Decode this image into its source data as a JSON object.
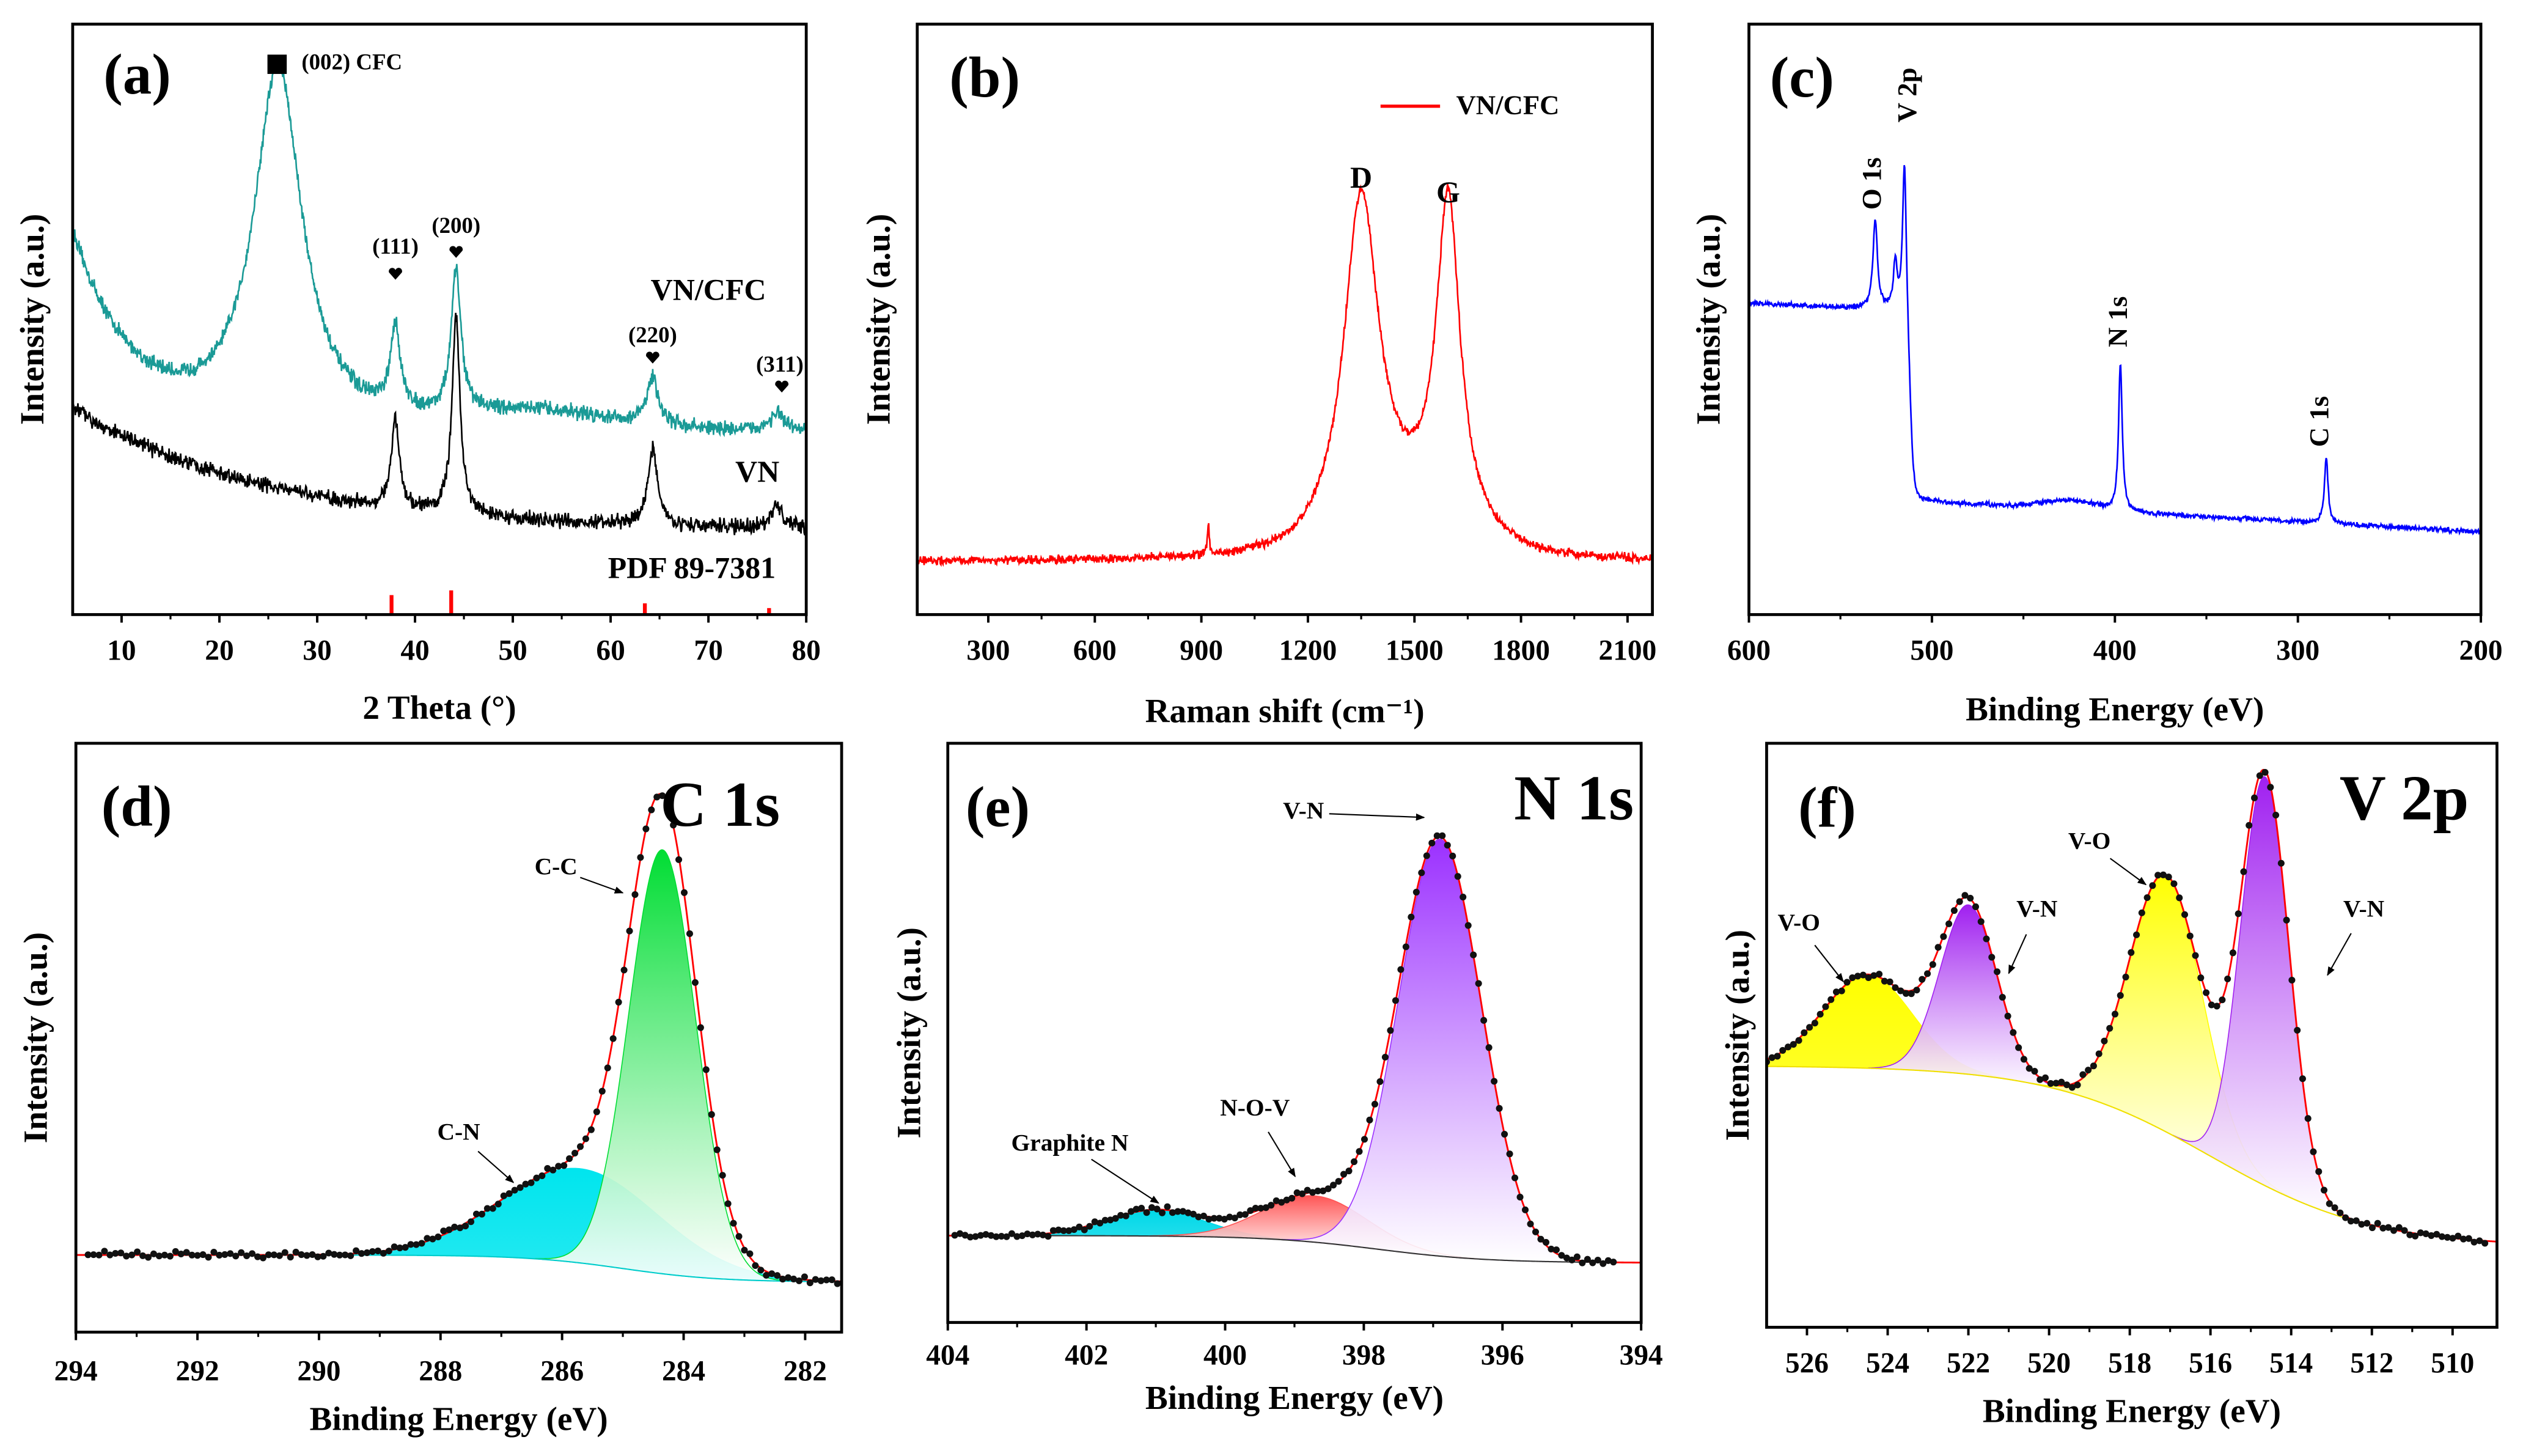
{
  "chart_data": [
    {
      "type": "line",
      "panel_label": "(a)",
      "xlabel": "2 Theta (°)",
      "ylabel": "Intensity (a.u.)",
      "xlim": [
        5,
        80
      ],
      "ylim": [
        0,
        100
      ],
      "xticks": [
        "10",
        "20",
        "30",
        "40",
        "50",
        "60",
        "70",
        "80"
      ],
      "series": [
        {
          "name": "VN/CFC",
          "color": "#1a9a96",
          "noise": 1.6,
          "background": {
            "type": "exp",
            "a": 31,
            "b": 33,
            "x0": 5,
            "t": 6
          },
          "peaks": [
            [
              26,
              61,
              3,
              "l"
            ],
            [
              38,
              14,
              0.6,
              "l"
            ],
            [
              44.2,
              24,
              0.6,
              "l"
            ],
            [
              52,
              3,
              8,
              "g"
            ],
            [
              64.3,
              8,
              0.7,
              "l"
            ],
            [
              77,
              3,
              0.8,
              "l"
            ]
          ],
          "label_pos": [
            70,
            54.5
          ]
        },
        {
          "name": "VN",
          "color": "#000000",
          "noise": 1.6,
          "background": {
            "type": "exp",
            "a": 14,
            "b": 21,
            "x0": 5,
            "t": 20
          },
          "peaks": [
            [
              38,
              15,
              0.5,
              "l"
            ],
            [
              44.2,
              33,
              0.5,
              "l"
            ],
            [
              64.3,
              13,
              0.6,
              "l"
            ],
            [
              77,
              4,
              0.7,
              "l"
            ]
          ],
          "label_pos": [
            75,
            23.7
          ]
        }
      ],
      "reference": {
        "name": "PDF 89-7381",
        "color": "#ff0000",
        "label_pos": [
          68.3,
          7.4
        ],
        "sticks": [
          [
            37.6,
            3.3
          ],
          [
            43.7,
            4.1
          ],
          [
            63.5,
            1.9
          ],
          [
            76.2,
            1.1
          ]
        ]
      },
      "annotations": [
        {
          "text": "(002) CFC",
          "x": 28.4,
          "y": 93.2,
          "marker": "square",
          "mx": 25.9,
          "my": 93.2,
          "anchor": "start"
        },
        {
          "text": "(111)",
          "x": 38,
          "y": 62,
          "marker": "heart",
          "mx": 38,
          "my": 57.8
        },
        {
          "text": "(200)",
          "x": 44.2,
          "y": 65.5,
          "marker": "heart",
          "mx": 44.2,
          "my": 61.5
        },
        {
          "text": "(220)",
          "x": 64.3,
          "y": 47,
          "marker": "heart",
          "mx": 64.3,
          "my": 43.6
        },
        {
          "text": "(311)",
          "x": 77.3,
          "y": 42,
          "marker": "heart",
          "mx": 77.5,
          "my": 38.7
        }
      ],
      "panel_label_pos": [
        11.6,
        90.5
      ]
    },
    {
      "type": "line",
      "panel_label": "(b)",
      "xlabel": "Raman shift (cm⁻¹)",
      "ylabel": "Intensity (a.u.)",
      "xlim": [
        100,
        2170
      ],
      "ylim": [
        0,
        100
      ],
      "xticks": [
        "300",
        "600",
        "900",
        "1200",
        "1500",
        "1800",
        "2100"
      ],
      "legend": "top-right",
      "series": [
        {
          "name": "VN/CFC",
          "color": "#ff0000",
          "noise": 0.9,
          "background": {
            "type": "const",
            "a": 9
          },
          "peaks": [
            [
              1350,
              58,
              60,
              "l"
            ],
            [
              1595,
              55,
              40,
              "l"
            ],
            [
              1500,
              6,
              150,
              "g"
            ],
            [
              920,
              5,
              3,
              "l"
            ]
          ]
        }
      ],
      "annotations": [
        {
          "text": "D",
          "x": 1350,
          "y": 73.5
        },
        {
          "text": "G",
          "x": 1595,
          "y": 71
        }
      ],
      "panel_label_pos": [
        290,
        90
      ]
    },
    {
      "type": "line",
      "panel_label": "(c)",
      "xlabel": "Binding Energy (eV)",
      "ylabel": "Intensity (a.u.)",
      "xlim": [
        600,
        200
      ],
      "ylim": [
        0,
        100
      ],
      "xticks": [
        "600",
        "500",
        "400",
        "300",
        "200"
      ],
      "series": [
        {
          "name": "",
          "color": "#0000ff",
          "noise": 0.5,
          "background": {
            "type": "sig",
            "a": 14,
            "b": 32,
            "c": 512,
            "s": 1,
            "m": 0.017,
            "x0": 200
          },
          "peaks": [
            [
              531,
              15,
              1.5,
              "l"
            ],
            [
              520,
              8,
              1.2,
              "l"
            ],
            [
              515,
              26,
              1.2,
              "l"
            ],
            [
              425,
              1.5,
              15,
              "g"
            ],
            [
              397,
              25,
              1.2,
              "l"
            ],
            [
              284.5,
              11,
              1.2,
              "l"
            ]
          ]
        }
      ],
      "annotations": [
        {
          "text": "O 1s",
          "x": 531.4,
          "y": 73,
          "rotate": true
        },
        {
          "text": "V 2p",
          "x": 512,
          "y": 88,
          "rotate": true
        },
        {
          "text": "N 1s",
          "x": 397,
          "y": 49.6,
          "rotate": true
        },
        {
          "text": "C 1s",
          "x": 287,
          "y": 32.7,
          "rotate": true
        }
      ],
      "panel_label_pos": [
        571,
        90
      ]
    },
    {
      "type": "xps",
      "panel_label": "(d)",
      "title": "C 1s",
      "xlabel": "Binding Energy (eV)",
      "ylabel": "Intensity (a.u.)",
      "xlim": [
        294,
        281.4
      ],
      "ylim": [
        0,
        100
      ],
      "xticks": [
        "294",
        "292",
        "290",
        "288",
        "286",
        "284",
        "282"
      ],
      "background": {
        "type": "sig",
        "a": 8.5,
        "b": 4.6,
        "c": 285,
        "s": 0.8
      },
      "background_color": "#00cccc",
      "components": [
        {
          "c": 285.7,
          "h": 16,
          "w": 1.3,
          "color": "#00e5ee",
          "fade": false
        },
        {
          "c": 284.35,
          "h": 72,
          "w": 0.55,
          "color": "#00dd33",
          "fade": true
        }
      ],
      "data_range": [
        293.8,
        281.2
      ],
      "annotations": [
        {
          "text": "C-C",
          "x": 286.1,
          "y": 78.7,
          "ax": 285.0,
          "ay": 74.6
        },
        {
          "text": "C-N",
          "x": 287.7,
          "y": 33.6,
          "ax": 286.8,
          "ay": 25.4
        }
      ],
      "panel_label_pos": [
        293.0,
        88.3
      ],
      "title_pos": [
        283.4,
        88.5
      ]
    },
    {
      "type": "xps",
      "panel_label": "(e)",
      "title": "N 1s",
      "xlabel": "Binding Energy (eV)",
      "ylabel": "Intensity (a.u.)",
      "xlim": [
        404,
        394
      ],
      "ylim": [
        0,
        100
      ],
      "xticks": [
        "404",
        "402",
        "400",
        "398",
        "396",
        "394"
      ],
      "background": {
        "type": "sig",
        "a": 10.3,
        "b": 4.7,
        "c": 397.8,
        "s": 0.8
      },
      "background_color": "#333333",
      "components": [
        {
          "c": 401,
          "h": 4.5,
          "w": 0.7,
          "color": "#00d8e8",
          "fade": false
        },
        {
          "c": 398.7,
          "h": 8,
          "w": 0.75,
          "color": "#ff5555",
          "fade": true
        },
        {
          "c": 396.9,
          "h": 72,
          "w": 0.6,
          "color": "#9b30ff",
          "fade": true
        }
      ],
      "data_range": [
        403.9,
        394.4
      ],
      "annotations": [
        {
          "text": "V-N",
          "x": 398.87,
          "y": 88,
          "ax": 397.13,
          "ay": 87.2
        },
        {
          "text": "N-O-V",
          "x": 399.57,
          "y": 36.7,
          "ax": 398.99,
          "ay": 25.2
        },
        {
          "text": "Graphite N",
          "x": 402.24,
          "y": 30.6,
          "ax": 400.96,
          "ay": 20.6
        }
      ],
      "panel_label_pos": [
        403.28,
        88
      ],
      "title_pos": [
        394.97,
        89.4
      ]
    },
    {
      "type": "xps",
      "panel_label": "(f)",
      "title": "V 2p",
      "xlabel": "Binding Energy (eV)",
      "ylabel": "Intensity (a.u.)",
      "xlim": [
        527,
        508.9
      ],
      "ylim": [
        0,
        100
      ],
      "xticks": [
        "526",
        "524",
        "522",
        "520",
        "518",
        "516",
        "514",
        "512",
        "510"
      ],
      "background": {
        "type": "sig",
        "a": 13.8,
        "b": 31,
        "c": 516,
        "s": 2
      },
      "background_color": "#f0e000",
      "components": [
        {
          "c": 524.5,
          "h": 16,
          "w": 1.1,
          "color": "#ffff00",
          "fade": false
        },
        {
          "c": 522,
          "h": 29,
          "w": 0.7,
          "color": "#a020f0",
          "fade": true
        },
        {
          "c": 517.1,
          "h": 44,
          "w": 0.9,
          "color": "#ffff00",
          "fade": true
        },
        {
          "c": 514.65,
          "h": 70,
          "w": 0.6,
          "color": "#a020f0",
          "fade": true
        }
      ],
      "data_range": [
        527,
        509.2
      ],
      "annotations": [
        {
          "text": "V-O",
          "x": 526.2,
          "y": 68.9,
          "ax": 525.1,
          "ay": 59.2
        },
        {
          "text": "V-N",
          "x": 520.3,
          "y": 71.3,
          "ax": 521.0,
          "ay": 60.6
        },
        {
          "text": "V-O",
          "x": 519.0,
          "y": 82.9,
          "ax": 517.6,
          "ay": 75.8
        },
        {
          "text": "V-N",
          "x": 512.2,
          "y": 71.3,
          "ax": 513.1,
          "ay": 60.3
        }
      ],
      "panel_label_pos": [
        525.5,
        88
      ],
      "title_pos": [
        511.2,
        89.5
      ]
    }
  ]
}
